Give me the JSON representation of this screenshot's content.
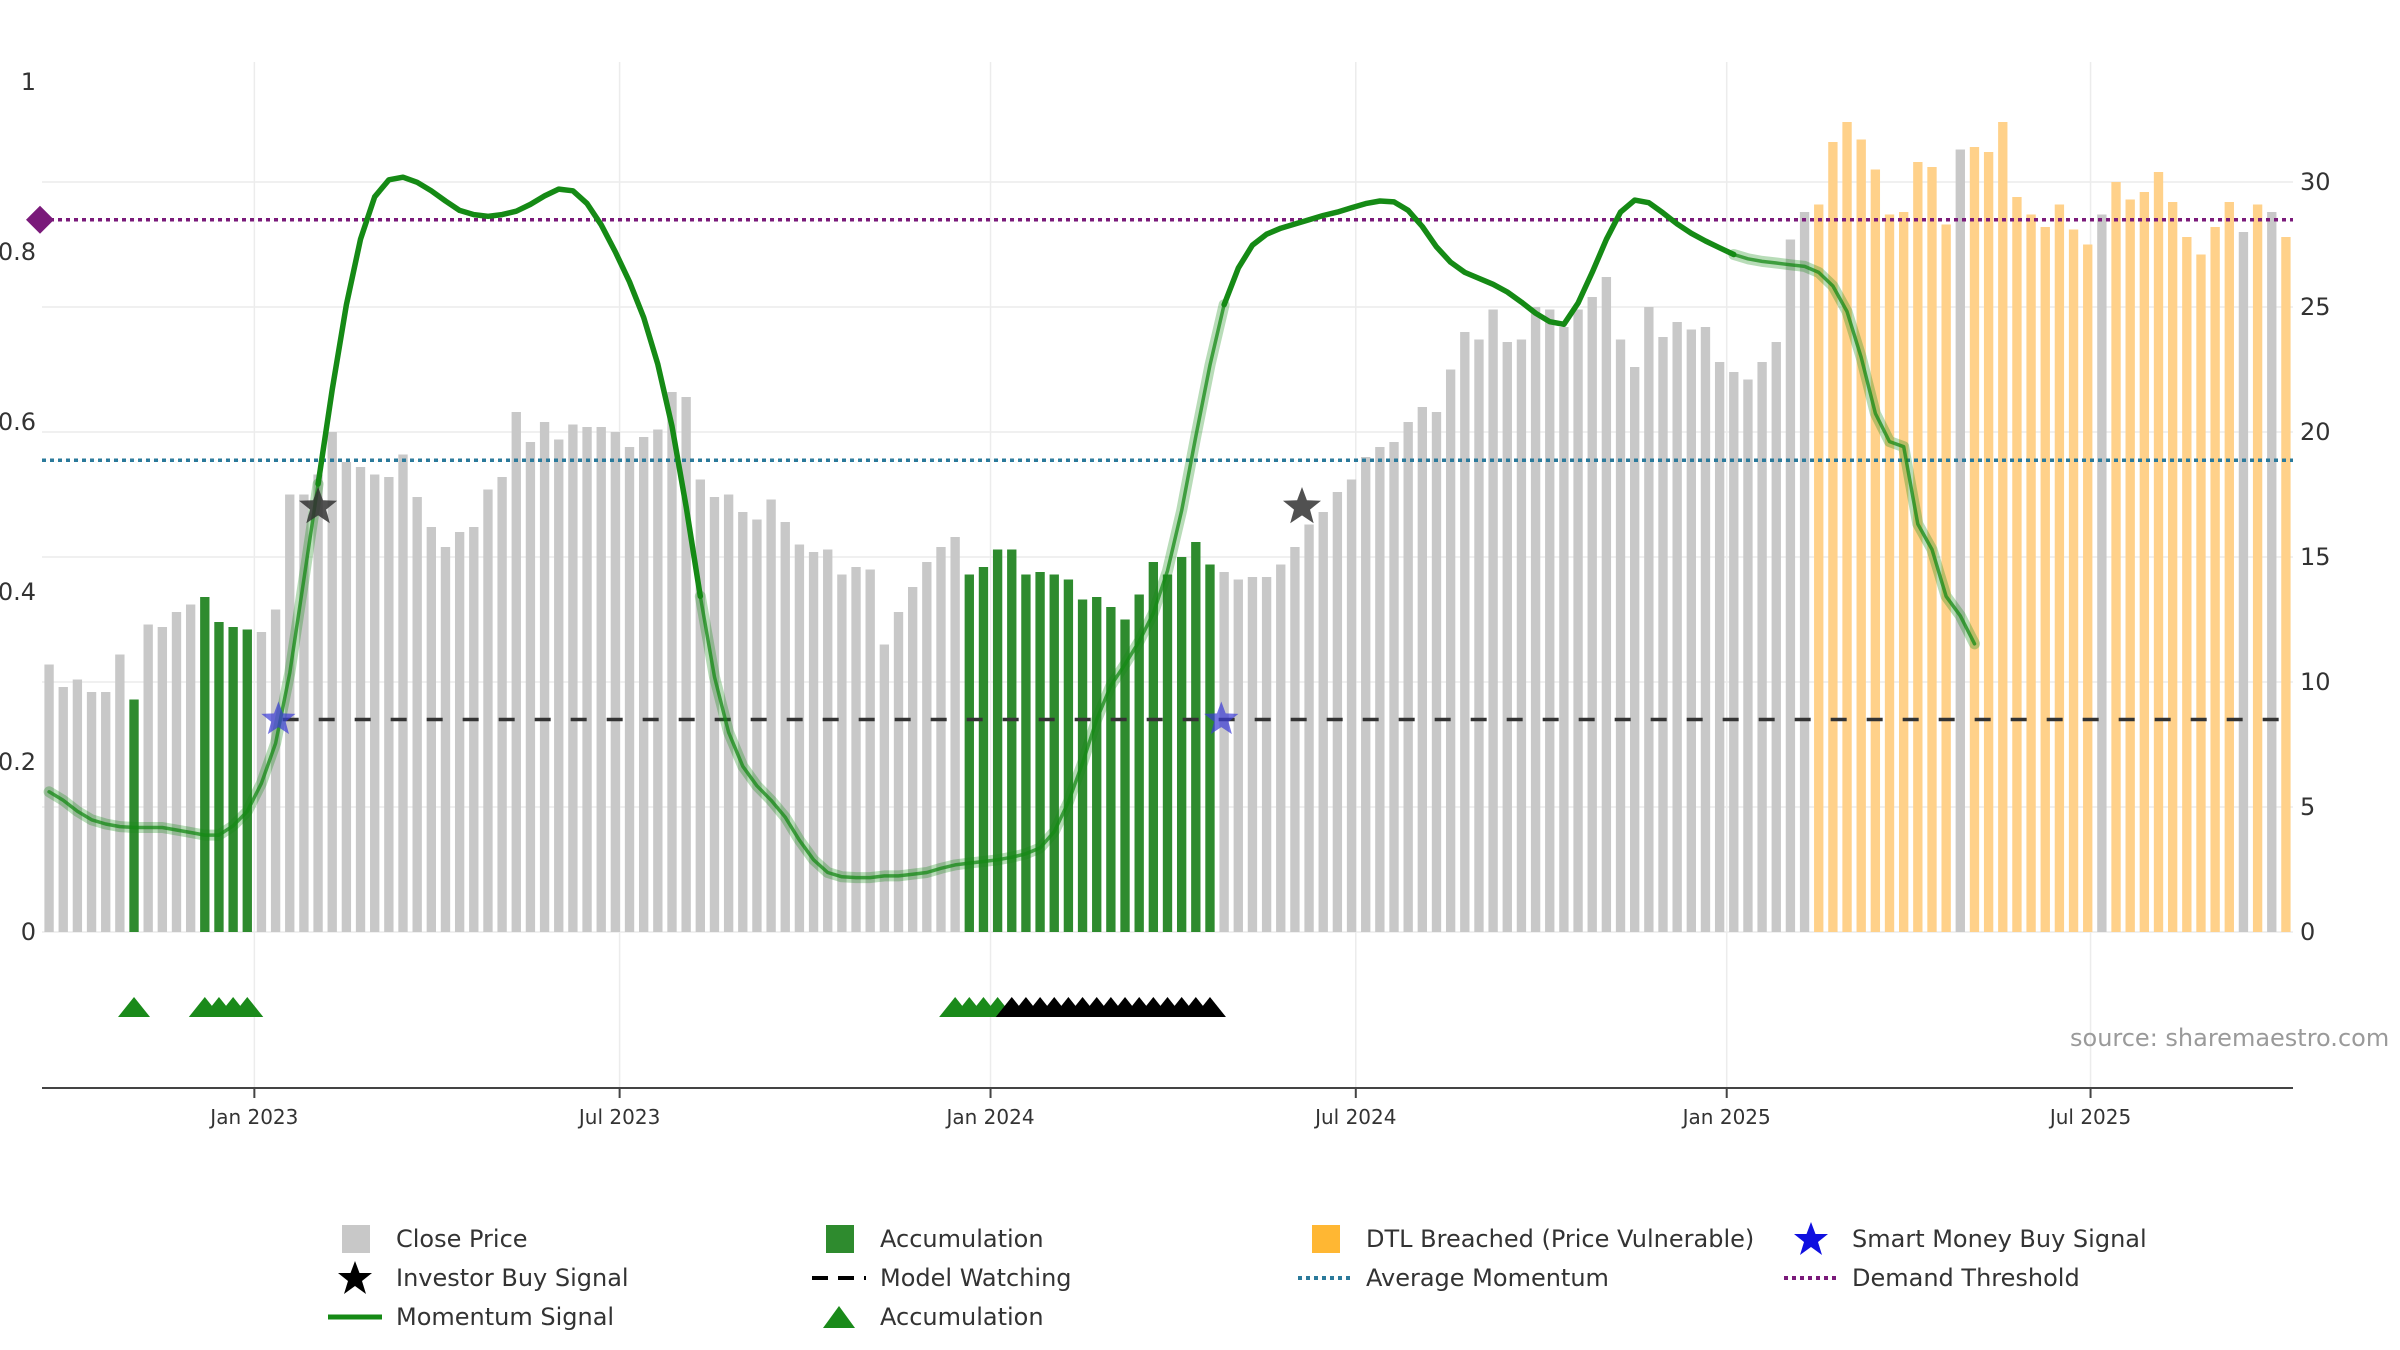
{
  "colors": {
    "price": "#c8c8c8",
    "accumulation": "#2e8b2e",
    "dtl": "#ffd18a",
    "momentum": "#158a15",
    "average": "#2b7a9b",
    "threshold": "#7a1a7a",
    "watching": "#333333",
    "smart_money": "#3b3bd6",
    "investor": "#333333",
    "tri_green": "#1a8a1a",
    "tri_black": "#000000"
  },
  "source": "source: sharemaestro.com",
  "chart_data": {
    "type": "bar",
    "title": "",
    "x_ticks": [
      "Jan 2023",
      "Jul 2023",
      "Jan 2024",
      "Jul 2024",
      "Jan 2025",
      "Jul 2025"
    ],
    "x_tick_positions": [
      14.5,
      40.3,
      66.5,
      92.3,
      118.5,
      144.2
    ],
    "y_left": {
      "range": [
        0,
        1
      ],
      "ticks": [
        "0",
        "0.2",
        "0.4",
        "0.6",
        "0.8",
        "1"
      ]
    },
    "y_right": {
      "range": [
        0,
        34
      ],
      "ticks": [
        "0",
        "5",
        "10",
        "15",
        "20",
        "25",
        "30"
      ]
    },
    "close_price": [
      10.7,
      9.8,
      10.1,
      9.6,
      9.6,
      11.1,
      9.3,
      12.3,
      12.2,
      12.8,
      13.1,
      13.4,
      12.4,
      12.2,
      12.1,
      12.0,
      12.9,
      17.5,
      17.5,
      18.3,
      20.0,
      18.8,
      18.6,
      18.3,
      18.2,
      19.1,
      17.4,
      16.2,
      15.4,
      16.0,
      16.2,
      17.7,
      18.2,
      20.8,
      19.6,
      20.4,
      19.7,
      20.3,
      20.2,
      20.2,
      20.0,
      19.4,
      19.8,
      20.1,
      21.6,
      21.4,
      18.1,
      17.4,
      17.5,
      16.8,
      16.5,
      17.3,
      16.4,
      15.5,
      15.2,
      15.3,
      14.3,
      14.6,
      14.5,
      11.5,
      12.8,
      13.8,
      14.8,
      15.4,
      15.8,
      14.3,
      14.6,
      15.3,
      15.3,
      14.3,
      14.4,
      14.3,
      14.1,
      13.3,
      13.4,
      13.0,
      12.5,
      13.5,
      14.8,
      14.3,
      15.0,
      15.6,
      14.7,
      14.4,
      14.1,
      14.2,
      14.2,
      14.7,
      15.4,
      16.3,
      16.8,
      17.6,
      18.1,
      19.0,
      19.4,
      19.6,
      20.4,
      21.0,
      20.8,
      22.5,
      24.0,
      23.7,
      24.9,
      23.6,
      23.7,
      25.0,
      24.9,
      24.2,
      24.9,
      25.4,
      26.2,
      23.7,
      22.6,
      25.0,
      23.8,
      24.4,
      24.1,
      24.2,
      22.8,
      22.4,
      22.1,
      22.8,
      23.6,
      27.7,
      28.8,
      29.1,
      31.6,
      32.4,
      31.7,
      30.5,
      28.7,
      28.8,
      30.8,
      30.6,
      28.3,
      31.3,
      31.4,
      31.2,
      32.4,
      29.4,
      28.7,
      28.2,
      29.1,
      28.1,
      27.5,
      28.7,
      30.0,
      29.3,
      29.6,
      30.4,
      29.2,
      27.8,
      27.1,
      28.2,
      29.2,
      28.0,
      29.1,
      28.8,
      27.8
    ],
    "bar_state": "PPPPPPAPPPPAAAAPPPPPPPPPPPPPPPPPPPPPPPPPPPPPPPPPPPPPPPPPPPPPPPPPPAAAAAAAAAAAAAAAAAAPPPPPPPPPPPPPPPPPPPPPPPPPPPPPPPPPPPPPPPPPPDDDDDDDDDDPDDDDDDDDDPDDDDDDDDDPDPDDDD",
    "momentum_signal": [
      0.165,
      0.155,
      0.142,
      0.132,
      0.127,
      0.124,
      0.123,
      0.123,
      0.123,
      0.12,
      0.117,
      0.114,
      0.114,
      0.125,
      0.142,
      0.175,
      0.222,
      0.305,
      0.415,
      0.527,
      0.638,
      0.738,
      0.815,
      0.865,
      0.885,
      0.888,
      0.882,
      0.872,
      0.86,
      0.849,
      0.844,
      0.842,
      0.844,
      0.848,
      0.856,
      0.866,
      0.874,
      0.872,
      0.857,
      0.832,
      0.8,
      0.765,
      0.723,
      0.668,
      0.595,
      0.5,
      0.395,
      0.3,
      0.235,
      0.195,
      0.172,
      0.155,
      0.135,
      0.108,
      0.085,
      0.07,
      0.065,
      0.064,
      0.064,
      0.066,
      0.066,
      0.068,
      0.07,
      0.075,
      0.079,
      0.081,
      0.083,
      0.085,
      0.088,
      0.092,
      0.099,
      0.118,
      0.153,
      0.199,
      0.25,
      0.29,
      0.315,
      0.342,
      0.375,
      0.425,
      0.496,
      0.583,
      0.667,
      0.738,
      0.781,
      0.808,
      0.821,
      0.828,
      0.833,
      0.838,
      0.843,
      0.847,
      0.852,
      0.857,
      0.86,
      0.859,
      0.849,
      0.83,
      0.806,
      0.788,
      0.776,
      0.769,
      0.762,
      0.753,
      0.741,
      0.728,
      0.718,
      0.715,
      0.74,
      0.776,
      0.815,
      0.847,
      0.861,
      0.858,
      0.846,
      0.833,
      0.822,
      0.813,
      0.805,
      0.797,
      0.792,
      0.789,
      0.787,
      0.785,
      0.783,
      0.776,
      0.76,
      0.73,
      0.676,
      0.61,
      0.577,
      0.571,
      0.48,
      0.45,
      0.395,
      0.372,
      0.339
    ],
    "average_momentum": 0.555,
    "demand_threshold": 0.838,
    "model_watching_level": 0.25,
    "model_watching_start_index": 16.5,
    "investor_buy_signals": [
      {
        "index": 19,
        "y": 0.5
      },
      {
        "index": 88.5,
        "y": 0.5
      }
    ],
    "smart_money_buy_signals": [
      {
        "index": 16.2,
        "y": 0.25
      },
      {
        "index": 82.8,
        "y": 0.25
      }
    ],
    "accumulation_triangles_green": [
      6,
      11,
      12,
      13,
      14,
      64,
      65,
      66,
      67
    ],
    "accumulation_triangles_black": [
      68,
      69,
      70,
      71,
      72,
      73,
      74,
      75,
      76,
      77,
      78,
      79,
      80,
      81,
      82
    ]
  },
  "legend": [
    {
      "key": "close_price",
      "label": "Close Price"
    },
    {
      "key": "accumulation_bar",
      "label": "Accumulation"
    },
    {
      "key": "dtl",
      "label": "DTL Breached (Price Vulnerable)"
    },
    {
      "key": "smart_money",
      "label": "Smart Money Buy Signal"
    },
    {
      "key": "investor",
      "label": "Investor Buy Signal"
    },
    {
      "key": "watching",
      "label": "Model Watching"
    },
    {
      "key": "average",
      "label": "Average Momentum"
    },
    {
      "key": "threshold",
      "label": "Demand Threshold"
    },
    {
      "key": "momentum",
      "label": "Momentum Signal"
    },
    {
      "key": "accumulation_tri",
      "label": "Accumulation"
    }
  ]
}
